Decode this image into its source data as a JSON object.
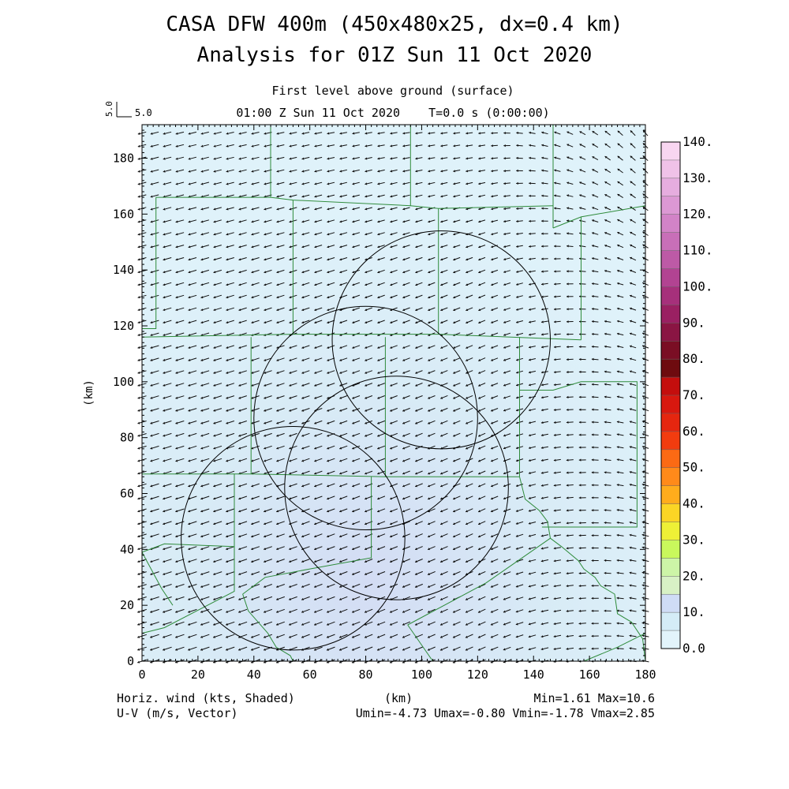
{
  "header": {
    "title": "CASA DFW 400m (450x480x25, dx=0.4 km)",
    "subtitle": "Analysis for 01Z Sun 11 Oct 2020",
    "level": "First level above ground (surface)",
    "time_line": "01:00 Z Sun 11 Oct 2020    T=0.0 s (0:00:00)",
    "ref_vector": "5.0",
    "ref_vector_side": "5.0"
  },
  "footer": {
    "field_label": "Horiz. wind (kts, Shaded)",
    "vector_label": "U-V (m/s, Vector)",
    "x_unit": "(km)",
    "minmax": "Min=1.61 Max=10.6",
    "uv_range": "Umin=-4.73 Umax=-0.80 Vmin=-1.78 Vmax=2.85"
  },
  "chart_data": {
    "type": "heatmap",
    "xlabel": "(km)",
    "ylabel": "(km)",
    "xlim": [
      0,
      180
    ],
    "ylim": [
      0,
      192
    ],
    "xticks": [
      0,
      20,
      40,
      60,
      80,
      100,
      120,
      140,
      160,
      180
    ],
    "yticks": [
      0,
      20,
      40,
      60,
      80,
      100,
      120,
      140,
      160,
      180
    ],
    "field_min": 1.61,
    "field_max": 10.6,
    "wind": {
      "umin": -4.73,
      "umax": -0.8,
      "vmin": -1.78,
      "vmax": 2.85
    },
    "colorbar": {
      "labels": [
        "0.0",
        "10.",
        "20.",
        "30.",
        "40.",
        "50.",
        "60.",
        "70.",
        "80.",
        "90.",
        "100.",
        "110.",
        "120.",
        "130.",
        "140."
      ],
      "colors": [
        "#e2f4fb",
        "#d4ecf7",
        "#cfdcf6",
        "#d8f1c5",
        "#cdf5a7",
        "#c9f85c",
        "#eef036",
        "#fbd525",
        "#ffac1c",
        "#ff8a1a",
        "#fb6a14",
        "#f23c0f",
        "#e5260f",
        "#d8180f",
        "#c40e0d",
        "#6e0b0f",
        "#7a0e24",
        "#8a1543",
        "#9a2062",
        "#a6307b",
        "#b24392",
        "#bd5aa6",
        "#c86fb8",
        "#d283c7",
        "#dc98d4",
        "#e6addf",
        "#f0c2e8",
        "#f8d6f1"
      ]
    },
    "radar_rings": [
      {
        "cx": 107,
        "cy": 115,
        "r": 39
      },
      {
        "cx": 80,
        "cy": 87,
        "r": 40
      },
      {
        "cx": 91,
        "cy": 62,
        "r": 40
      },
      {
        "cx": 54,
        "cy": 44,
        "r": 40
      }
    ],
    "boundaries": [
      [
        [
          46,
          192
        ],
        [
          46,
          166
        ]
      ],
      [
        [
          96,
          192
        ],
        [
          96,
          163
        ]
      ],
      [
        [
          147,
          192
        ],
        [
          147,
          155
        ]
      ],
      [
        [
          5,
          166
        ],
        [
          46,
          166
        ],
        [
          54,
          165
        ],
        [
          96,
          163
        ],
        [
          106,
          162
        ],
        [
          147,
          163
        ]
      ],
      [
        [
          5,
          166
        ],
        [
          5,
          119
        ],
        [
          0,
          119
        ]
      ],
      [
        [
          54,
          165
        ],
        [
          54,
          117
        ]
      ],
      [
        [
          106,
          162
        ],
        [
          106,
          117
        ]
      ],
      [
        [
          147,
          155
        ],
        [
          157,
          159
        ],
        [
          180,
          163
        ]
      ],
      [
        [
          157,
          159
        ],
        [
          157,
          115
        ]
      ],
      [
        [
          0,
          116
        ],
        [
          54,
          117
        ],
        [
          106,
          117
        ],
        [
          157,
          115
        ]
      ],
      [
        [
          39,
          116
        ],
        [
          39,
          67
        ]
      ],
      [
        [
          87,
          116
        ],
        [
          87,
          66
        ]
      ],
      [
        [
          135,
          116
        ],
        [
          135,
          66
        ]
      ],
      [
        [
          135,
          97
        ],
        [
          147,
          97
        ],
        [
          157,
          100
        ],
        [
          177,
          100
        ],
        [
          177,
          48
        ],
        [
          143,
          48
        ]
      ],
      [
        [
          0,
          67
        ],
        [
          39,
          67
        ],
        [
          87,
          66
        ],
        [
          135,
          66
        ]
      ],
      [
        [
          33,
          67
        ],
        [
          33,
          25
        ],
        [
          8,
          12
        ],
        [
          0,
          10
        ]
      ],
      [
        [
          33,
          41
        ],
        [
          8,
          42
        ],
        [
          0,
          39
        ]
      ],
      [
        [
          82,
          66
        ],
        [
          82,
          37
        ],
        [
          60,
          33
        ],
        [
          44,
          30
        ],
        [
          36,
          24
        ]
      ],
      [
        [
          36,
          24
        ],
        [
          38,
          18
        ],
        [
          45,
          10
        ],
        [
          48,
          5
        ],
        [
          53,
          2
        ],
        [
          54,
          0
        ]
      ],
      [
        [
          0,
          39
        ],
        [
          7,
          26
        ],
        [
          11,
          20
        ]
      ],
      [
        [
          135,
          66
        ],
        [
          137,
          58
        ],
        [
          142,
          54
        ],
        [
          145,
          50
        ],
        [
          146,
          44
        ],
        [
          150,
          41
        ],
        [
          156,
          36
        ],
        [
          158,
          33
        ],
        [
          162,
          30
        ],
        [
          164,
          27
        ],
        [
          169,
          24
        ],
        [
          170,
          17
        ],
        [
          175,
          14
        ],
        [
          179,
          8
        ],
        [
          180,
          0
        ]
      ],
      [
        [
          146,
          44
        ],
        [
          123,
          28
        ],
        [
          95,
          13
        ]
      ],
      [
        [
          95,
          13
        ],
        [
          104,
          0
        ]
      ],
      [
        [
          158,
          0
        ],
        [
          170,
          5
        ],
        [
          180,
          10
        ]
      ]
    ]
  }
}
